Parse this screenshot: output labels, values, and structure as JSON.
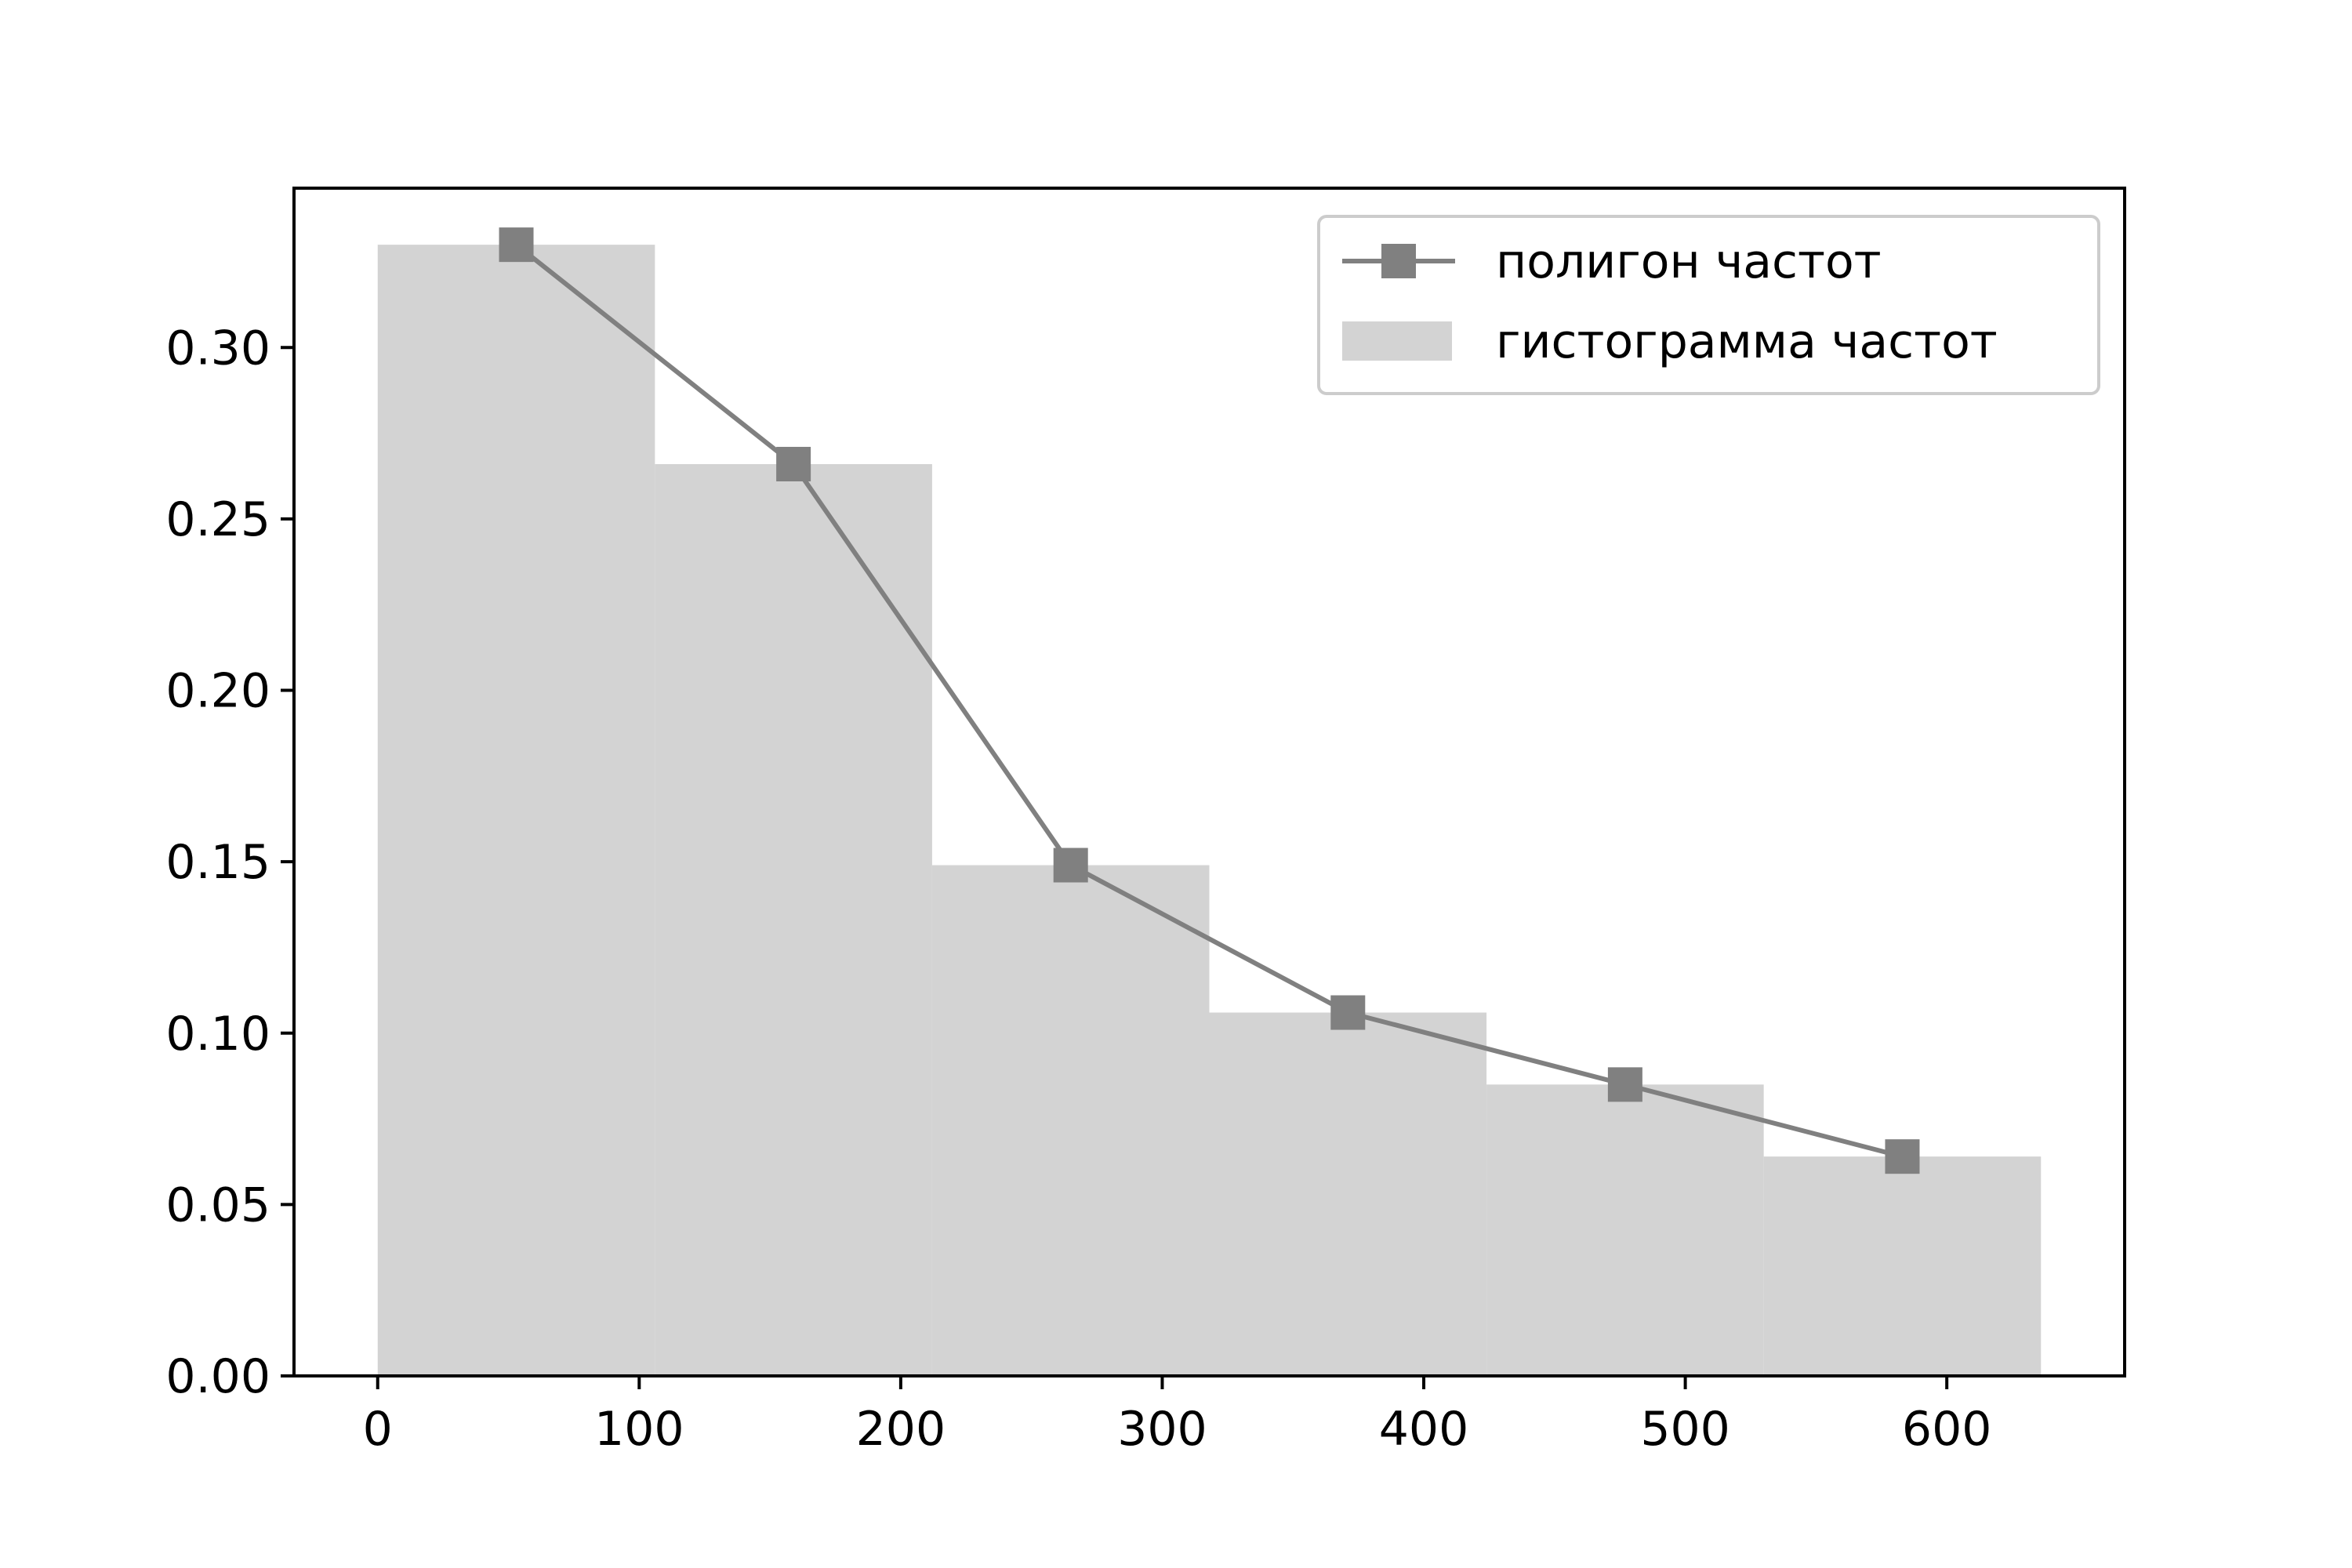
{
  "chart_data": {
    "type": "bar",
    "title": "",
    "xlabel": "",
    "ylabel": "",
    "xlim": [
      -32,
      668
    ],
    "ylim": [
      0,
      0.3465
    ],
    "x_ticks": [
      0,
      100,
      200,
      300,
      400,
      500,
      600
    ],
    "x_tick_labels": [
      "0",
      "100",
      "200",
      "300",
      "400",
      "500",
      "600"
    ],
    "y_ticks": [
      0.0,
      0.05,
      0.1,
      0.15,
      0.2,
      0.25,
      0.3
    ],
    "y_tick_labels": [
      "0.00",
      "0.05",
      "0.10",
      "0.15",
      "0.20",
      "0.25",
      "0.30"
    ],
    "grid": false,
    "legend_position": "top-right",
    "histogram": {
      "name": "гистограмма частот",
      "bin_edges": [
        0,
        106,
        212,
        318,
        424,
        530,
        636
      ],
      "values": [
        0.33,
        0.266,
        0.149,
        0.106,
        0.085,
        0.064
      ],
      "color": "#d3d3d3"
    },
    "polygon": {
      "name": "полигон частот",
      "x": [
        53,
        159,
        265,
        371,
        477,
        583
      ],
      "y": [
        0.33,
        0.266,
        0.149,
        0.106,
        0.085,
        0.064
      ],
      "color": "#808080",
      "marker": "square"
    }
  }
}
